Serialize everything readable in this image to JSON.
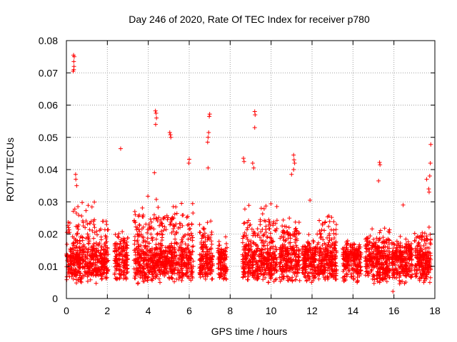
{
  "chart_data": {
    "type": "scatter",
    "title": "Day 246 of 2020, Rate Of TEC Index for receiver p780",
    "xlabel": "GPS time / hours",
    "ylabel": "ROTI / TECUs",
    "xlim": [
      0,
      18
    ],
    "ylim": [
      0,
      0.08
    ],
    "grid": true,
    "marker": "+",
    "series_color": "#ff0000",
    "x_ticks": [
      {
        "value": 0,
        "label": "0"
      },
      {
        "value": 2,
        "label": "2"
      },
      {
        "value": 4,
        "label": "4"
      },
      {
        "value": 6,
        "label": "6"
      },
      {
        "value": 8,
        "label": "8"
      },
      {
        "value": 10,
        "label": "10"
      },
      {
        "value": 12,
        "label": "12"
      },
      {
        "value": 14,
        "label": "14"
      },
      {
        "value": 16,
        "label": "16"
      },
      {
        "value": 18,
        "label": "18"
      }
    ],
    "y_ticks": [
      {
        "value": 0,
        "label": "0"
      },
      {
        "value": 0.01,
        "label": "0.01"
      },
      {
        "value": 0.02,
        "label": "0.02"
      },
      {
        "value": 0.03,
        "label": "0.03"
      },
      {
        "value": 0.04,
        "label": "0.04"
      },
      {
        "value": 0.05,
        "label": "0.05"
      },
      {
        "value": 0.06,
        "label": "0.06"
      },
      {
        "value": 0.07,
        "label": "0.07"
      },
      {
        "value": 0.08,
        "label": "0.08"
      }
    ],
    "dense_clusters": [
      {
        "x_start": 0.0,
        "x_end": 2.05,
        "y_min": 0.004,
        "y_max": 0.03
      },
      {
        "x_start": 2.35,
        "x_end": 3.0,
        "y_min": 0.006,
        "y_max": 0.022
      },
      {
        "x_start": 3.3,
        "x_end": 6.2,
        "y_min": 0.003,
        "y_max": 0.032
      },
      {
        "x_start": 6.5,
        "x_end": 7.15,
        "y_min": 0.006,
        "y_max": 0.025
      },
      {
        "x_start": 7.4,
        "x_end": 7.85,
        "y_min": 0.006,
        "y_max": 0.02
      },
      {
        "x_start": 8.6,
        "x_end": 10.3,
        "y_min": 0.004,
        "y_max": 0.03
      },
      {
        "x_start": 10.4,
        "x_end": 11.4,
        "y_min": 0.004,
        "y_max": 0.025
      },
      {
        "x_start": 11.5,
        "x_end": 12.2,
        "y_min": 0.005,
        "y_max": 0.02
      },
      {
        "x_start": 12.25,
        "x_end": 13.2,
        "y_min": 0.006,
        "y_max": 0.026
      },
      {
        "x_start": 13.5,
        "x_end": 14.4,
        "y_min": 0.005,
        "y_max": 0.018
      },
      {
        "x_start": 14.6,
        "x_end": 15.8,
        "y_min": 0.004,
        "y_max": 0.022
      },
      {
        "x_start": 15.9,
        "x_end": 16.9,
        "y_min": 0.004,
        "y_max": 0.02
      },
      {
        "x_start": 17.0,
        "x_end": 17.8,
        "y_min": 0.005,
        "y_max": 0.024
      }
    ],
    "notable_points": [
      {
        "x": 0.35,
        "y": 0.0755
      },
      {
        "x": 0.38,
        "y": 0.075
      },
      {
        "x": 0.36,
        "y": 0.0735
      },
      {
        "x": 0.37,
        "y": 0.072
      },
      {
        "x": 0.33,
        "y": 0.0705
      },
      {
        "x": 0.36,
        "y": 0.071
      },
      {
        "x": 0.45,
        "y": 0.0385
      },
      {
        "x": 0.46,
        "y": 0.037
      },
      {
        "x": 0.5,
        "y": 0.035
      },
      {
        "x": 2.65,
        "y": 0.0465
      },
      {
        "x": 4.35,
        "y": 0.0582
      },
      {
        "x": 4.38,
        "y": 0.0575
      },
      {
        "x": 4.4,
        "y": 0.056
      },
      {
        "x": 4.36,
        "y": 0.054
      },
      {
        "x": 4.3,
        "y": 0.039
      },
      {
        "x": 5.05,
        "y": 0.0515
      },
      {
        "x": 5.08,
        "y": 0.0508
      },
      {
        "x": 5.1,
        "y": 0.05
      },
      {
        "x": 6.0,
        "y": 0.0432
      },
      {
        "x": 5.98,
        "y": 0.042
      },
      {
        "x": 7.0,
        "y": 0.0572
      },
      {
        "x": 6.98,
        "y": 0.0565
      },
      {
        "x": 6.95,
        "y": 0.0515
      },
      {
        "x": 6.92,
        "y": 0.05
      },
      {
        "x": 6.9,
        "y": 0.0485
      },
      {
        "x": 6.92,
        "y": 0.0405
      },
      {
        "x": 8.65,
        "y": 0.0435
      },
      {
        "x": 8.68,
        "y": 0.0425
      },
      {
        "x": 9.2,
        "y": 0.058
      },
      {
        "x": 9.22,
        "y": 0.057
      },
      {
        "x": 9.2,
        "y": 0.053
      },
      {
        "x": 9.1,
        "y": 0.042
      },
      {
        "x": 9.15,
        "y": 0.0405
      },
      {
        "x": 11.1,
        "y": 0.0445
      },
      {
        "x": 11.12,
        "y": 0.043
      },
      {
        "x": 11.15,
        "y": 0.042
      },
      {
        "x": 11.1,
        "y": 0.04
      },
      {
        "x": 11.0,
        "y": 0.0385
      },
      {
        "x": 11.9,
        "y": 0.0305
      },
      {
        "x": 15.3,
        "y": 0.0422
      },
      {
        "x": 15.32,
        "y": 0.0415
      },
      {
        "x": 15.25,
        "y": 0.0365
      },
      {
        "x": 16.45,
        "y": 0.029
      },
      {
        "x": 15.95,
        "y": 0.0022
      },
      {
        "x": 17.8,
        "y": 0.0478
      },
      {
        "x": 17.78,
        "y": 0.042
      },
      {
        "x": 17.75,
        "y": 0.038
      },
      {
        "x": 17.6,
        "y": 0.037
      },
      {
        "x": 17.7,
        "y": 0.034
      },
      {
        "x": 17.72,
        "y": 0.033
      }
    ]
  }
}
